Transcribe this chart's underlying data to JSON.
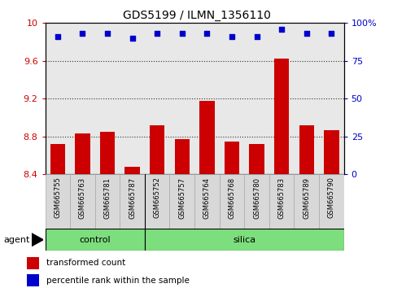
{
  "title": "GDS5199 / ILMN_1356110",
  "samples": [
    "GSM665755",
    "GSM665763",
    "GSM665781",
    "GSM665787",
    "GSM665752",
    "GSM665757",
    "GSM665764",
    "GSM665768",
    "GSM665780",
    "GSM665783",
    "GSM665789",
    "GSM665790"
  ],
  "transformed_count": [
    8.72,
    8.83,
    8.85,
    8.48,
    8.92,
    8.77,
    9.18,
    8.75,
    8.72,
    9.62,
    8.92,
    8.87
  ],
  "percentile_rank_pct": [
    91,
    93,
    93,
    90,
    93,
    93,
    93,
    91,
    91,
    96,
    93,
    93
  ],
  "ylim_left": [
    8.4,
    10.0
  ],
  "ylim_right": [
    0,
    100
  ],
  "yticks_left": [
    8.4,
    8.8,
    9.2,
    9.6,
    10.0
  ],
  "yticks_right": [
    0,
    25,
    50,
    75,
    100
  ],
  "ytick_labels_left": [
    "8.4",
    "8.8",
    "9.2",
    "9.6",
    "10"
  ],
  "ytick_labels_right": [
    "0",
    "25",
    "50",
    "75",
    "100%"
  ],
  "bar_color": "#cc0000",
  "dot_color": "#0000cc",
  "bar_width": 0.6,
  "control_count": 4,
  "silica_count": 8,
  "agent_label": "agent",
  "legend_bar_label": "transformed count",
  "legend_dot_label": "percentile rank within the sample",
  "background_plot": "#e8e8e8",
  "dotted_grid_color": "#333333",
  "title_fontsize": 10,
  "tick_fontsize": 8,
  "sample_fontsize": 6,
  "group_fontsize": 8,
  "legend_fontsize": 7.5
}
